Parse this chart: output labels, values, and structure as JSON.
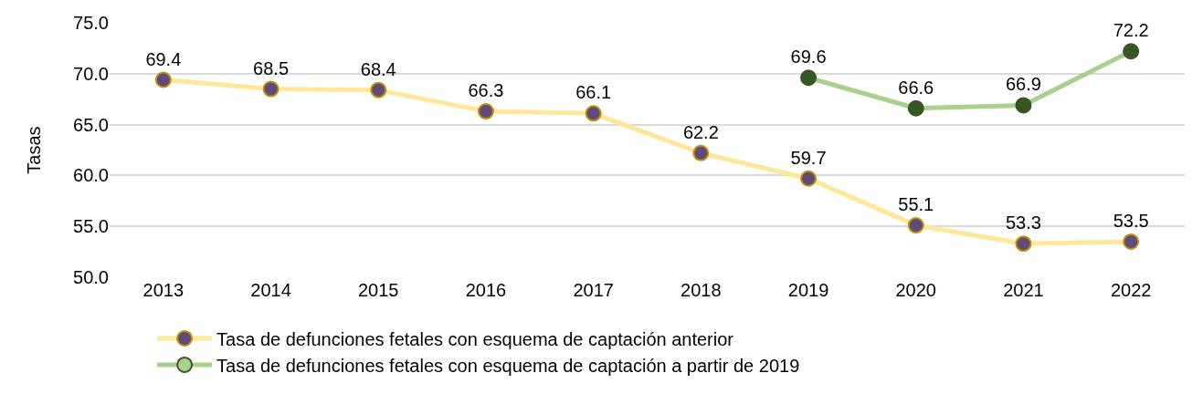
{
  "chart_data": {
    "type": "line",
    "ylabel": "Tasas",
    "categories": [
      "2013",
      "2014",
      "2015",
      "2016",
      "2017",
      "2018",
      "2019",
      "2020",
      "2021",
      "2022"
    ],
    "series": [
      {
        "name": "Tasa de defunciones fetales con esquema de captación anterior",
        "color": "#ffe699",
        "colors": [
          "#604a7b",
          "#604a7b",
          "#604a7b",
          "#604a7b",
          "#604a7b",
          "#604a7b",
          "#604a7b",
          "#604a7b",
          "#604a7b",
          "#604a7b"
        ],
        "values": [
          69.4,
          68.5,
          68.4,
          66.3,
          66.1,
          62.2,
          59.7,
          55.1,
          53.3,
          53.5
        ]
      },
      {
        "name": "Tasa de defunciones fetales con esquema de captación a partir de 2019",
        "color": "#a9d18e",
        "colors": [
          null,
          null,
          null,
          null,
          null,
          null,
          "#375623",
          "#375623",
          "#375623",
          "#375623"
        ],
        "values": [
          null,
          null,
          null,
          null,
          null,
          null,
          69.6,
          66.6,
          66.9,
          72.2
        ]
      }
    ],
    "ylim": [
      50,
      75
    ],
    "yticks": [
      {
        "value": 50,
        "label": "50.0"
      },
      {
        "value": 55,
        "label": "55.0"
      },
      {
        "value": 60,
        "label": "60.0"
      },
      {
        "value": 65,
        "label": "65.0"
      },
      {
        "value": 70,
        "label": "70.0"
      },
      {
        "value": 75,
        "label": "75.0"
      }
    ],
    "grid": "y",
    "legend": "bottom",
    "marker": "circle",
    "line_style": "solid",
    "data_labels": true
  }
}
